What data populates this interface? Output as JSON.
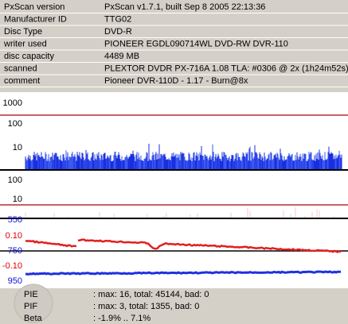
{
  "info": {
    "rows": [
      {
        "label": "PxScan version",
        "value": "PxScan v1.7.1, built Sep  8 2005 22:13:36"
      },
      {
        "label": "Manufacturer ID",
        "value": "TTG02"
      },
      {
        "label": "Disc Type",
        "value": "DVD-R"
      },
      {
        "label": "writer used",
        "value": "PIONEER EGDL090714WL DVD-RW DVR-110"
      },
      {
        "label": "disc capacity",
        "value": "4489 MB"
      },
      {
        "label": "scanned",
        "value": "PLEXTOR DVDR PX-716A 1.08 TLA: #0306 @ 2x (1h24m52s)"
      },
      {
        "label": "comment",
        "value": "Pioneer DVR-110D - 1.17 - Burn@8x"
      }
    ]
  },
  "graph": {
    "pie_axis": [
      "1000",
      "100",
      "10"
    ],
    "pif_axis": [
      "100",
      "10"
    ],
    "jitter_axis": [
      "550",
      "750",
      "950"
    ],
    "beta_axis": [
      "0.10",
      "-0.10"
    ]
  },
  "stats": [
    {
      "label": "PIE",
      "value": ": max: 16, total: 45144, bad: 0"
    },
    {
      "label": "PIF",
      "value": ": max: 3, total: 1355, bad: 0"
    },
    {
      "label": "Beta",
      "value": ": -1.9% .. 7.1%"
    }
  ]
}
